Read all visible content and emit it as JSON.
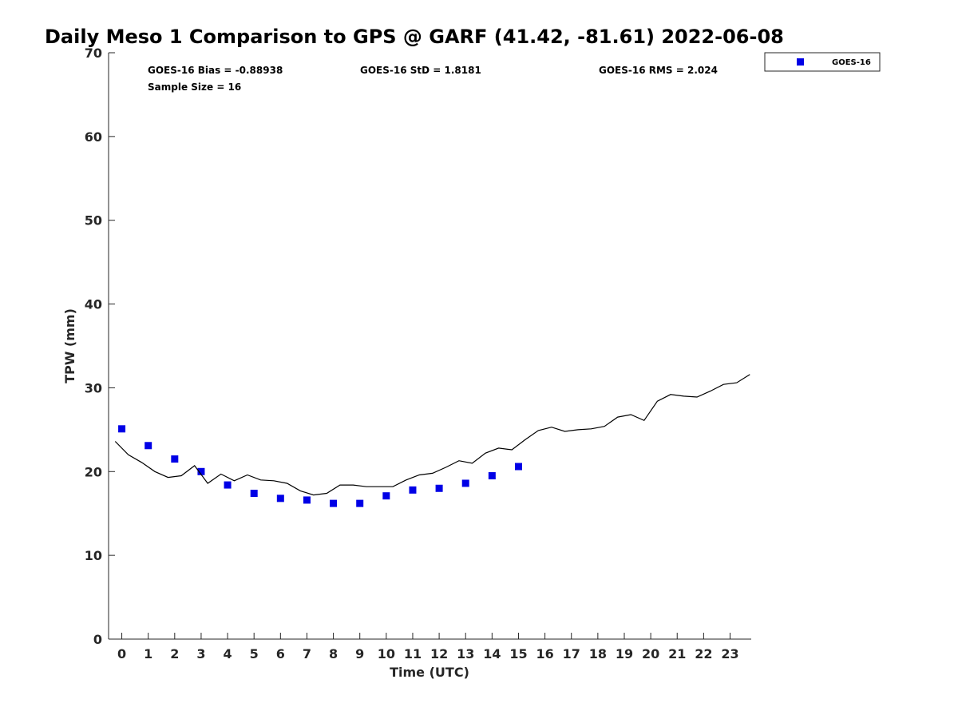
{
  "chart_data": {
    "type": "scatter",
    "title": "Daily Meso 1 Comparison to GPS @ GARF (41.42, -81.61) 2022-06-08",
    "xlabel": "Time (UTC)",
    "ylabel": "TPW (mm)",
    "xlim": [
      -0.5,
      23.8
    ],
    "ylim": [
      0,
      70
    ],
    "x_ticks": [
      "0",
      "1",
      "2",
      "3",
      "4",
      "5",
      "6",
      "7",
      "8",
      "9",
      "10",
      "11",
      "12",
      "13",
      "14",
      "15",
      "16",
      "17",
      "18",
      "19",
      "20",
      "21",
      "22",
      "23"
    ],
    "y_ticks": [
      "0",
      "10",
      "20",
      "30",
      "40",
      "50",
      "60",
      "70"
    ],
    "grid": false,
    "legend_position": "outside top-right",
    "stats": [
      "GOES-16 Bias = -0.88938",
      "GOES-16 StD = 1.8181",
      "GOES-16 RMS = 2.024",
      "Sample Size = 16"
    ],
    "series": [
      {
        "name": "GOES-16",
        "kind": "scatter",
        "marker": "square",
        "color": "#0000e6",
        "x": [
          0,
          1,
          2,
          3,
          4,
          5,
          6,
          7,
          8,
          9,
          10,
          11,
          12,
          13,
          14,
          15
        ],
        "y": [
          25.1,
          23.1,
          21.5,
          20.0,
          18.4,
          17.4,
          16.8,
          16.6,
          16.2,
          16.2,
          17.1,
          17.8,
          18.0,
          18.6,
          19.5,
          20.6
        ]
      },
      {
        "kind": "line",
        "color": "#000000",
        "x": [
          -0.25,
          0.25,
          0.75,
          1.25,
          1.75,
          2.25,
          2.75,
          3.25,
          3.75,
          4.25,
          4.75,
          5.25,
          5.75,
          6.25,
          6.75,
          7.25,
          7.75,
          8.25,
          8.75,
          9.25,
          9.75,
          10.25,
          10.75,
          11.25,
          11.75,
          12.25,
          12.75,
          13.25,
          13.75,
          14.25,
          14.75,
          15.25,
          15.75,
          16.25,
          16.75,
          17.25,
          17.75,
          18.25,
          18.75,
          19.25,
          19.75,
          20.25,
          20.75,
          21.25,
          21.75,
          22.25,
          22.75,
          23.25,
          23.75
        ],
        "y": [
          23.6,
          22.0,
          21.1,
          20.0,
          19.3,
          19.5,
          20.7,
          18.6,
          19.7,
          18.9,
          19.6,
          19.0,
          18.9,
          18.6,
          17.7,
          17.2,
          17.4,
          18.4,
          18.4,
          18.2,
          18.2,
          18.2,
          19.0,
          19.6,
          19.8,
          20.5,
          21.3,
          21.0,
          22.2,
          22.8,
          22.6,
          23.8,
          24.9,
          25.3,
          24.8,
          25.0,
          25.1,
          25.4,
          26.5,
          26.8,
          26.1,
          28.4,
          29.2,
          29.0,
          28.9,
          29.6,
          30.4,
          30.6,
          31.6
        ]
      }
    ]
  }
}
